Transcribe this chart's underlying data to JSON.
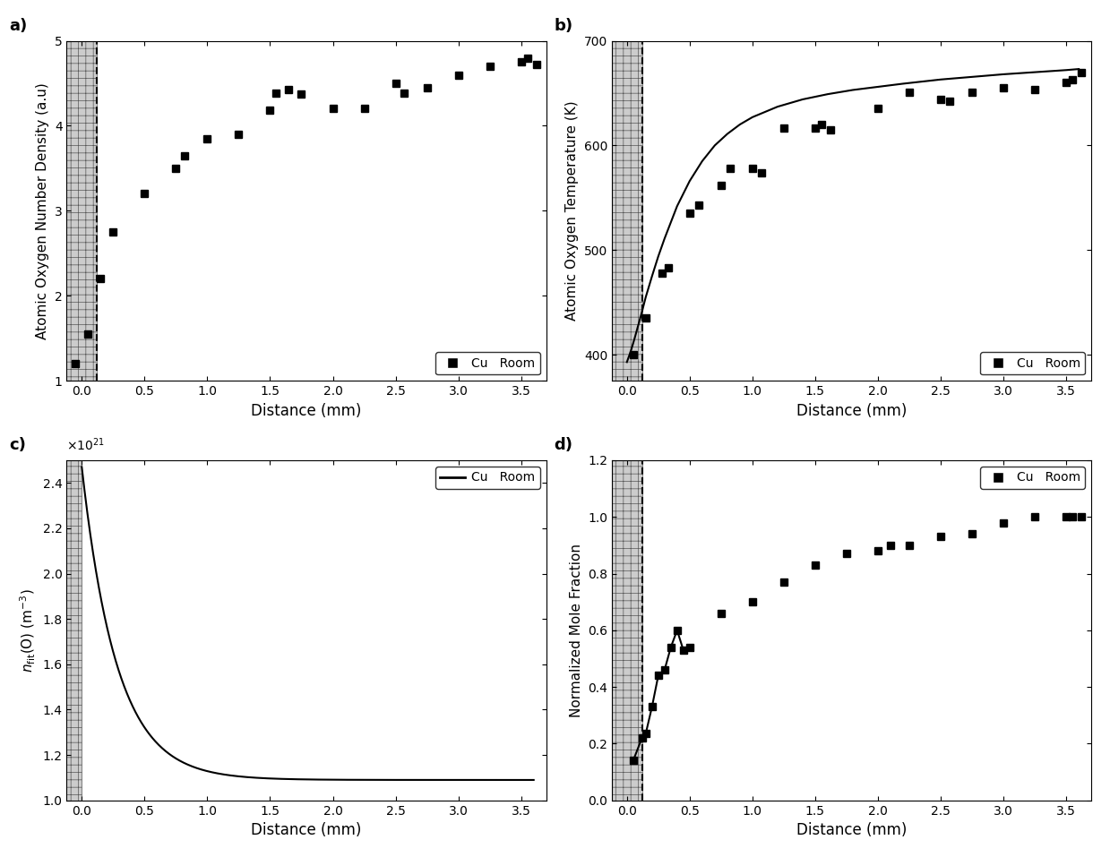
{
  "panel_a": {
    "x": [
      -0.05,
      0.05,
      0.15,
      0.25,
      0.5,
      0.75,
      0.82,
      1.0,
      1.25,
      1.5,
      1.55,
      1.65,
      1.75,
      2.0,
      2.25,
      2.5,
      2.57,
      2.75,
      3.0,
      3.25,
      3.5,
      3.55,
      3.62
    ],
    "y": [
      1.2,
      1.55,
      2.2,
      2.75,
      3.2,
      3.5,
      3.65,
      3.85,
      3.9,
      4.18,
      4.38,
      4.43,
      4.37,
      4.2,
      4.2,
      4.5,
      4.38,
      4.45,
      4.6,
      4.7,
      4.75,
      4.8,
      4.72
    ],
    "ylabel": "Atomic Oxygen Number Density (a.u)",
    "xlabel": "Distance (mm)",
    "ylim": [
      1,
      5
    ],
    "xlim": [
      -0.12,
      3.7
    ],
    "yticks": [
      1,
      2,
      3,
      4,
      5
    ],
    "xticks": [
      0.0,
      0.5,
      1.0,
      1.5,
      2.0,
      2.5,
      3.0,
      3.5
    ],
    "dashed_x": 0.12,
    "label": "a)"
  },
  "panel_b": {
    "x": [
      0.05,
      0.15,
      0.28,
      0.33,
      0.5,
      0.57,
      0.75,
      0.82,
      1.0,
      1.07,
      1.25,
      1.5,
      1.55,
      1.62,
      2.0,
      2.25,
      2.5,
      2.57,
      2.75,
      3.0,
      3.25,
      3.5,
      3.55,
      3.62
    ],
    "y": [
      400,
      435,
      478,
      483,
      535,
      543,
      562,
      578,
      578,
      574,
      617,
      617,
      620,
      615,
      635,
      651,
      644,
      642,
      651,
      655,
      653,
      660,
      663,
      670
    ],
    "curve_x": [
      0.0,
      0.03,
      0.06,
      0.09,
      0.12,
      0.15,
      0.2,
      0.25,
      0.3,
      0.4,
      0.5,
      0.6,
      0.7,
      0.8,
      0.9,
      1.0,
      1.2,
      1.4,
      1.6,
      1.8,
      2.0,
      2.2,
      2.5,
      3.0,
      3.5,
      3.6
    ],
    "curve_y": [
      393,
      403,
      415,
      428,
      441,
      455,
      475,
      494,
      511,
      542,
      566,
      585,
      600,
      611,
      620,
      627,
      637,
      644,
      649,
      653,
      656,
      659,
      663,
      668,
      672,
      673
    ],
    "ylabel": "Atomic Oxygen Temperature (K)",
    "xlabel": "Distance (mm)",
    "ylim": [
      375,
      700
    ],
    "xlim": [
      -0.12,
      3.7
    ],
    "yticks": [
      400,
      500,
      600,
      700
    ],
    "xticks": [
      0.0,
      0.5,
      1.0,
      1.5,
      2.0,
      2.5,
      3.0,
      3.5
    ],
    "dashed_x": 0.12,
    "label": "b)"
  },
  "panel_c": {
    "ylabel": "n_{fit}(O) (m^{-3})",
    "xlabel": "Distance (mm)",
    "ylim": [
      1.0,
      2.5
    ],
    "xlim": [
      -0.12,
      3.7
    ],
    "yticks": [
      1.0,
      1.2,
      1.4,
      1.6,
      1.8,
      2.0,
      2.2,
      2.4
    ],
    "xticks": [
      0.0,
      0.5,
      1.0,
      1.5,
      2.0,
      2.5,
      3.0,
      3.5
    ],
    "scale": 1e+21,
    "A": 1.38e+21,
    "B": 1.09e+21,
    "tau": 0.28,
    "label": "c)"
  },
  "panel_d": {
    "x_line": [
      0.05,
      0.12,
      0.15,
      0.2,
      0.25,
      0.3,
      0.35,
      0.4,
      0.45,
      0.5
    ],
    "y_line": [
      0.14,
      0.22,
      0.235,
      0.33,
      0.44,
      0.46,
      0.54,
      0.6,
      0.53,
      0.54
    ],
    "x_scatter": [
      0.75,
      1.0,
      1.25,
      1.5,
      1.75,
      2.0,
      2.1,
      2.25,
      2.5,
      2.75,
      3.0,
      3.25,
      3.5,
      3.55,
      3.62
    ],
    "y_scatter": [
      0.66,
      0.7,
      0.77,
      0.83,
      0.87,
      0.88,
      0.9,
      0.9,
      0.93,
      0.94,
      0.98,
      1.0,
      1.0,
      1.0,
      1.0
    ],
    "ylabel": "Normalized Mole Fraction",
    "xlabel": "Distance (mm)",
    "ylim": [
      0.0,
      1.2
    ],
    "xlim": [
      -0.12,
      3.7
    ],
    "yticks": [
      0.0,
      0.2,
      0.4,
      0.6,
      0.8,
      1.0,
      1.2
    ],
    "xticks": [
      0.0,
      0.5,
      1.0,
      1.5,
      2.0,
      2.5,
      3.0,
      3.5
    ],
    "dashed_x": 0.12,
    "label": "d)"
  },
  "legend_label": "Cu   Room",
  "marker": "s",
  "markersize": 6,
  "linewidth": 1.5,
  "hatch_pattern": "++",
  "hatch_color": "#555555"
}
